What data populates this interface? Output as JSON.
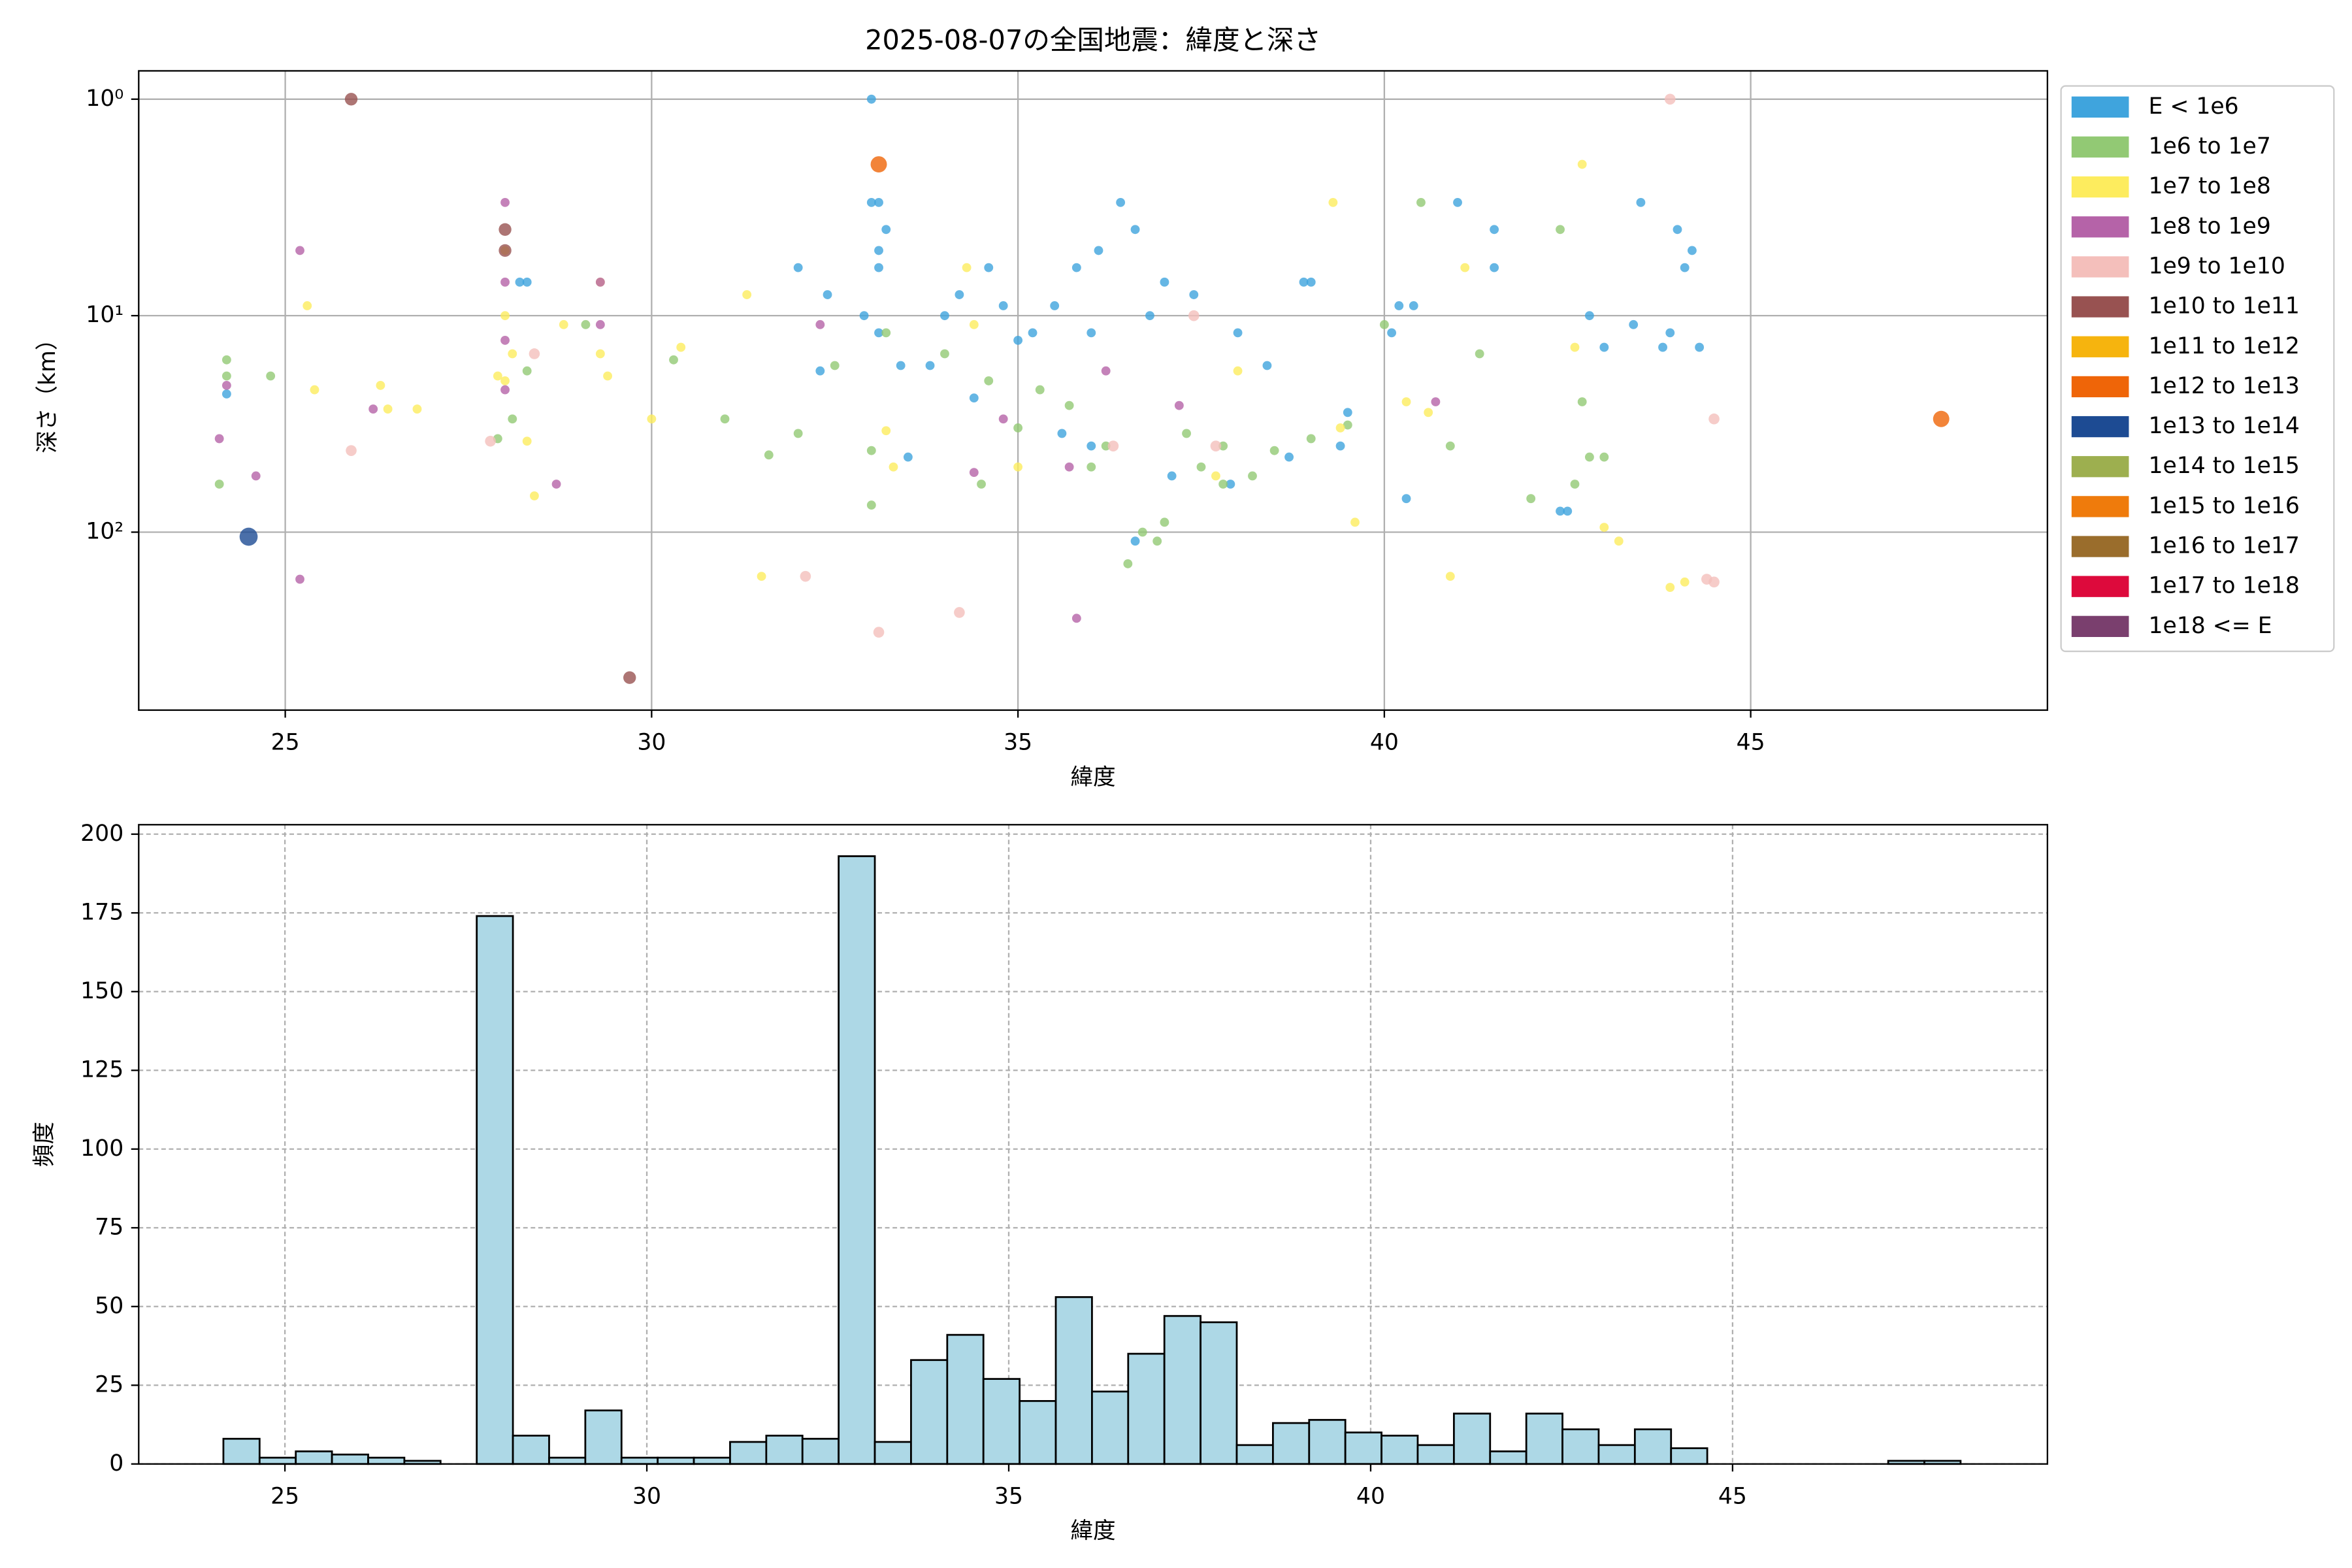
{
  "chart_data": [
    {
      "type": "scatter",
      "title": "2025-08-07の全国地震：緯度と深さ",
      "xlabel": "緯度",
      "ylabel": "深さ（km）",
      "xlim": [
        23.0,
        49.05
      ],
      "ylim": [
        0.74,
        664
      ],
      "yscale": "log",
      "y_inverted": true,
      "grid": true,
      "legend": "outside right",
      "xticks": [
        25,
        30,
        35,
        40,
        45
      ],
      "yticks": [
        {
          "value": 1,
          "label": "10⁰"
        },
        {
          "value": 10,
          "label": "10¹"
        },
        {
          "value": 100,
          "label": "10²"
        }
      ],
      "series": [
        {
          "name": "E < 1e6",
          "color": "#3fa4dd",
          "x": [
            33.0,
            33.0,
            33.1,
            33.2,
            33.1,
            33.1,
            32.0,
            32.4,
            32.9,
            33.1,
            33.4,
            33.8,
            34.0,
            34.2,
            34.6,
            34.8,
            35.0,
            35.2,
            35.5,
            35.8,
            36.1,
            36.4,
            36.0,
            36.6,
            36.8,
            37.0,
            37.4,
            38.0,
            38.4,
            38.9,
            39.0,
            39.5,
            39.4,
            40.1,
            40.2,
            40.3,
            40.4,
            41.0,
            41.5,
            41.5,
            42.4,
            42.5,
            42.8,
            43.0,
            43.4,
            43.5,
            43.8,
            43.9,
            44.0,
            44.1,
            44.2,
            44.3,
            24.2,
            28.2,
            28.3,
            32.3,
            33.5,
            34.4,
            35.6,
            36.6,
            37.9,
            36.0,
            38.7,
            37.1
          ],
          "values": [
            1.0,
            3,
            3,
            4,
            5,
            6,
            6,
            8,
            10,
            12,
            17,
            17,
            10,
            8,
            6,
            9,
            13,
            12,
            9,
            6,
            5,
            3,
            12,
            4,
            10,
            7,
            8,
            12,
            17,
            7,
            7,
            28,
            40,
            12,
            9,
            70,
            9,
            3,
            4,
            6,
            80,
            80,
            10,
            14,
            11,
            3,
            14,
            12,
            4,
            6,
            5,
            14,
            23,
            7,
            7,
            18,
            45,
            24,
            35,
            110,
            60,
            40,
            45,
            55
          ]
        },
        {
          "name": "1e6 to 1e7",
          "color": "#92c974",
          "x": [
            24.1,
            24.2,
            24.2,
            24.8,
            27.9,
            28.1,
            28.3,
            29.1,
            30.3,
            31.0,
            31.6,
            32.0,
            32.5,
            33.0,
            33.0,
            33.2,
            34.0,
            34.6,
            35.0,
            35.3,
            36.0,
            36.2,
            36.5,
            36.7,
            37.0,
            37.3,
            37.5,
            37.8,
            38.2,
            38.5,
            39.0,
            39.5,
            40.0,
            40.5,
            40.9,
            41.3,
            42.0,
            42.6,
            42.4,
            42.8,
            43.0,
            42.7,
            36.9,
            37.8,
            35.7,
            34.5
          ],
          "values": [
            60,
            16,
            19,
            19,
            37,
            30,
            18,
            11,
            16,
            30,
            44,
            35,
            17,
            42,
            75,
            12,
            15,
            20,
            33,
            22,
            50,
            40,
            140,
            100,
            90,
            35,
            50,
            40,
            55,
            42,
            37,
            32,
            11,
            3,
            40,
            15,
            70,
            60,
            4,
            45,
            45,
            25,
            110,
            60,
            26,
            60
          ]
        },
        {
          "name": "1e7 to 1e8",
          "color": "#fdec5e",
          "x": [
            25.3,
            25.4,
            26.3,
            26.4,
            26.8,
            28.0,
            28.0,
            28.1,
            28.0,
            27.9,
            28.3,
            28.4,
            28.8,
            29.3,
            29.3,
            29.4,
            30.0,
            30.4,
            31.3,
            31.5,
            33.2,
            33.3,
            34.4,
            34.3,
            35.0,
            37.7,
            38.0,
            39.4,
            39.6,
            40.3,
            40.6,
            40.9,
            41.1,
            42.7,
            42.6,
            43.0,
            43.2,
            43.9,
            44.1,
            39.3
          ],
          "values": [
            9,
            22,
            21,
            27,
            27,
            5,
            10,
            15,
            20,
            19,
            38,
            68,
            11,
            7,
            15,
            19,
            30,
            14,
            8,
            160,
            34,
            50,
            11,
            6,
            50,
            55,
            18,
            33,
            90,
            25,
            28,
            160,
            6,
            2,
            14,
            95,
            110,
            180,
            170,
            3
          ]
        },
        {
          "name": "1e8 to 1e9",
          "color": "#b563a8",
          "x": [
            24.1,
            24.2,
            24.6,
            25.2,
            25.2,
            26.2,
            28.0,
            28.0,
            28.0,
            28.0,
            28.7,
            29.3,
            29.3,
            32.3,
            34.4,
            34.8,
            35.8,
            36.2,
            37.2,
            40.7,
            35.7
          ],
          "values": [
            37,
            21,
            55,
            5,
            165,
            27,
            3,
            7,
            13,
            22,
            60,
            7,
            11,
            11,
            53,
            30,
            250,
            18,
            26,
            25,
            50
          ]
        },
        {
          "name": "1e9 to 1e10",
          "color": "#f4bfbb",
          "x": [
            25.9,
            27.8,
            28.4,
            32.1,
            33.1,
            34.2,
            36.3,
            37.7,
            43.9,
            44.5,
            44.4,
            44.5,
            37.4
          ],
          "values": [
            42,
            38,
            15,
            160,
            290,
            235,
            40,
            40,
            1,
            30,
            165,
            170,
            10
          ]
        },
        {
          "name": "1e10 to 1e11",
          "color": "#985251",
          "x": [
            25.9,
            28.0,
            28.0,
            29.7
          ],
          "values": [
            1,
            4,
            5,
            470
          ]
        },
        {
          "name": "1e11 to 1e12",
          "color": "#f6b40e",
          "x": [],
          "values": []
        },
        {
          "name": "1e12 to 1e13",
          "color": "#ef6508",
          "x": [
            33.1,
            47.6
          ],
          "values": [
            2,
            30
          ]
        },
        {
          "name": "1e13 to 1e14",
          "color": "#1d4b93",
          "x": [
            24.5
          ],
          "values": [
            105
          ]
        },
        {
          "name": "1e14 to 1e15",
          "color": "#9daf4f",
          "x": [],
          "values": []
        },
        {
          "name": "1e15 to 1e16",
          "color": "#ef7b0c",
          "x": [],
          "values": []
        },
        {
          "name": "1e16 to 1e17",
          "color": "#9a6d2c",
          "x": [],
          "values": []
        },
        {
          "name": "1e17 to 1e18",
          "color": "#dd0a3c",
          "x": [],
          "values": []
        },
        {
          "name": "1e18 <= E",
          "color": "#7a3f6e",
          "x": [],
          "values": []
        }
      ]
    },
    {
      "type": "histogram",
      "xlabel": "緯度",
      "ylabel": "頻度",
      "color": "#add8e6",
      "edgecolor": "#000000",
      "grid": "dashed",
      "xlim": [
        22.98,
        49.35
      ],
      "ylim": [
        0,
        203
      ],
      "xticks": [
        25,
        30,
        35,
        40,
        45
      ],
      "yticks": [
        0,
        25,
        50,
        75,
        100,
        125,
        150,
        175,
        200
      ],
      "bins": [
        24.15,
        24.65,
        25.15,
        25.65,
        26.15,
        26.65,
        27.15,
        27.65,
        28.15,
        28.65,
        29.15,
        29.65,
        30.15,
        30.65,
        31.15,
        31.65,
        32.15,
        32.65,
        33.15,
        33.65,
        34.15,
        34.65,
        35.15,
        35.65,
        36.15,
        36.65,
        37.15,
        37.65,
        38.15,
        38.65,
        39.15,
        39.65,
        40.15,
        40.65,
        41.15,
        41.65,
        42.15,
        42.65,
        43.15,
        43.65,
        44.15,
        44.65,
        45.15,
        45.65,
        46.15,
        46.65,
        47.15,
        47.65,
        48.15
      ],
      "values": [
        8,
        2,
        4,
        3,
        2,
        1,
        0,
        174,
        9,
        2,
        17,
        2,
        2,
        2,
        7,
        9,
        8,
        193,
        7,
        33,
        41,
        27,
        20,
        53,
        23,
        35,
        47,
        45,
        6,
        13,
        14,
        10,
        9,
        6,
        16,
        4,
        16,
        11,
        6,
        11,
        5,
        0,
        0,
        0,
        0,
        0,
        1,
        1
      ]
    }
  ]
}
